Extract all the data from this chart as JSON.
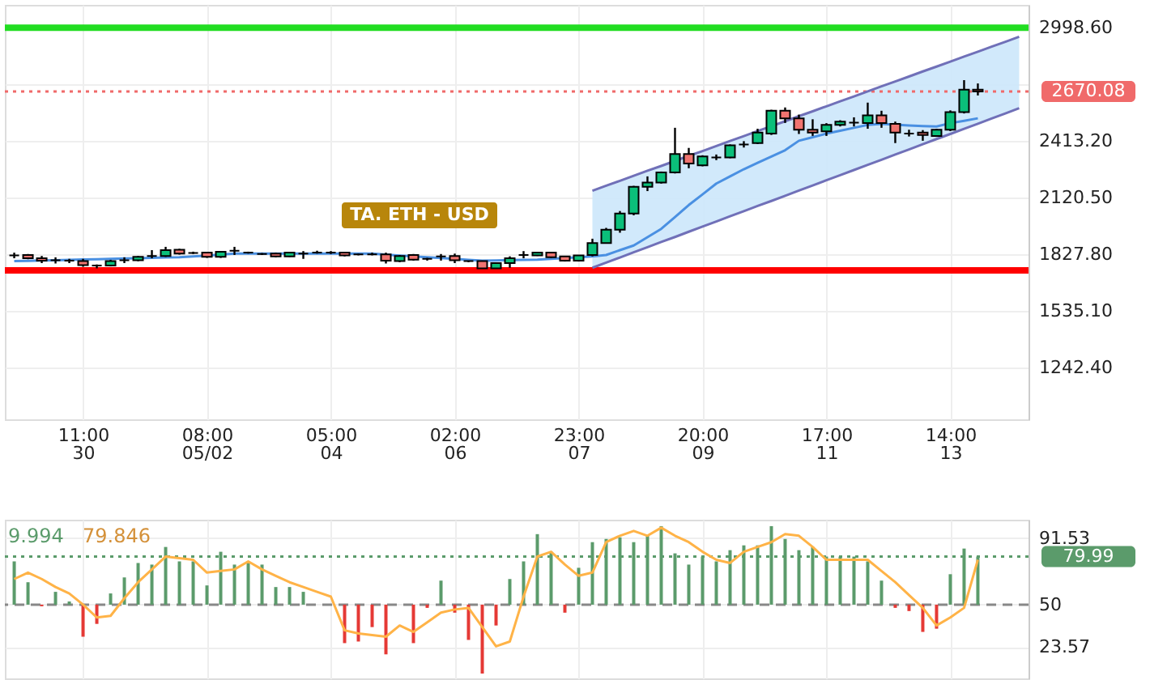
{
  "chart_data": [
    {
      "type": "candlestick",
      "categories": [
        null,
        null,
        null,
        null,
        null,
        "11:00\n30",
        null,
        null,
        null,
        null,
        null,
        null,
        null,
        null,
        "08:00\n05/02",
        null,
        null,
        null,
        null,
        null,
        null,
        null,
        null,
        "05:00\n04",
        null,
        null,
        null,
        null,
        null,
        null,
        null,
        null,
        "02:00\n06",
        null,
        null,
        null,
        null,
        null,
        null,
        null,
        null,
        "23:00\n07",
        null,
        null,
        null,
        null,
        null,
        null,
        null,
        null,
        "20:00\n09",
        null,
        null,
        null,
        null,
        null,
        null,
        null,
        null,
        "17:00\n11",
        null,
        null,
        null,
        null,
        null,
        null,
        null,
        null,
        "14:00\n13",
        null,
        null,
        null,
        null,
        null
      ],
      "ohlc": [
        [
          1823,
          1837,
          1808,
          1823
        ],
        [
          1825,
          1830,
          1803,
          1808
        ],
        [
          1808,
          1820,
          1783,
          1796
        ],
        [
          1798,
          1813,
          1781,
          1798
        ],
        [
          1796,
          1805,
          1783,
          1796
        ],
        [
          1793,
          1805,
          1764,
          1773
        ],
        [
          1771,
          1776,
          1756,
          1771
        ],
        [
          1771,
          1800,
          1766,
          1793
        ],
        [
          1798,
          1813,
          1783,
          1798
        ],
        [
          1798,
          1820,
          1793,
          1815
        ],
        [
          1820,
          1850,
          1808,
          1820
        ],
        [
          1820,
          1867,
          1815,
          1850
        ],
        [
          1852,
          1857,
          1827,
          1832
        ],
        [
          1835,
          1842,
          1830,
          1835
        ],
        [
          1837,
          1840,
          1810,
          1815
        ],
        [
          1815,
          1845,
          1810,
          1842
        ],
        [
          1847,
          1867,
          1825,
          1847
        ],
        [
          1837,
          1842,
          1832,
          1837
        ],
        [
          1830,
          1835,
          1825,
          1830
        ],
        [
          1832,
          1837,
          1813,
          1818
        ],
        [
          1818,
          1840,
          1815,
          1837
        ],
        [
          1832,
          1845,
          1805,
          1832
        ],
        [
          1837,
          1847,
          1832,
          1837
        ],
        [
          1837,
          1845,
          1830,
          1837
        ],
        [
          1837,
          1840,
          1818,
          1823
        ],
        [
          1828,
          1832,
          1823,
          1828
        ],
        [
          1828,
          1837,
          1823,
          1828
        ],
        [
          1828,
          1837,
          1781,
          1796
        ],
        [
          1793,
          1825,
          1788,
          1820
        ],
        [
          1825,
          1830,
          1796,
          1801
        ],
        [
          1805,
          1810,
          1796,
          1805
        ],
        [
          1818,
          1830,
          1796,
          1818
        ],
        [
          1820,
          1832,
          1783,
          1798
        ],
        [
          1793,
          1796,
          1788,
          1793
        ],
        [
          1793,
          1796,
          1754,
          1756
        ],
        [
          1756,
          1786,
          1754,
          1783
        ],
        [
          1783,
          1818,
          1759,
          1808
        ],
        [
          1825,
          1845,
          1808,
          1825
        ],
        [
          1823,
          1840,
          1820,
          1837
        ],
        [
          1837,
          1840,
          1810,
          1813
        ],
        [
          1818,
          1820,
          1791,
          1796
        ],
        [
          1796,
          1825,
          1791,
          1823
        ],
        [
          1825,
          1909,
          1818,
          1887
        ],
        [
          1887,
          1965,
          1884,
          1956
        ],
        [
          1956,
          2052,
          1940,
          2039
        ],
        [
          2039,
          2182,
          2030,
          2177
        ],
        [
          2177,
          2231,
          2155,
          2199
        ],
        [
          2199,
          2256,
          2194,
          2251
        ],
        [
          2251,
          2482,
          2246,
          2347
        ],
        [
          2347,
          2378,
          2273,
          2297
        ],
        [
          2288,
          2340,
          2283,
          2334
        ],
        [
          2329,
          2344,
          2315,
          2329
        ],
        [
          2329,
          2396,
          2325,
          2391
        ],
        [
          2396,
          2413,
          2380,
          2396
        ],
        [
          2403,
          2477,
          2398,
          2457
        ],
        [
          2452,
          2575,
          2445,
          2570
        ],
        [
          2570,
          2587,
          2507,
          2531
        ],
        [
          2531,
          2550,
          2450,
          2472
        ],
        [
          2472,
          2526,
          2440,
          2457
        ],
        [
          2464,
          2506,
          2440,
          2497
        ],
        [
          2497,
          2521,
          2489,
          2514
        ],
        [
          2509,
          2536,
          2489,
          2509
        ],
        [
          2506,
          2612,
          2477,
          2546
        ],
        [
          2546,
          2570,
          2482,
          2506
        ],
        [
          2502,
          2514,
          2403,
          2457
        ],
        [
          2452,
          2472,
          2437,
          2452
        ],
        [
          2457,
          2470,
          2415,
          2445
        ],
        [
          2440,
          2477,
          2435,
          2472
        ],
        [
          2472,
          2572,
          2465,
          2563
        ],
        [
          2563,
          2728,
          2556,
          2679
        ],
        [
          2679,
          2711,
          2649,
          2670
        ],
        null,
        null,
        null
      ],
      "colors": [
        "#000000",
        "#f07470",
        "#f07470",
        "#000000",
        "#000000",
        "#f07470",
        "#000000",
        "#0bbf7a",
        "#000000",
        "#0bbf7a",
        "#000000",
        "#0bbf7a",
        "#f07470",
        "#000000",
        "#f07470",
        "#0bbf7a",
        "#000000",
        "#000000",
        "#000000",
        "#f07470",
        "#0bbf7a",
        "#000000",
        "#000000",
        "#000000",
        "#f07470",
        "#000000",
        "#000000",
        "#f07470",
        "#0bbf7a",
        "#f07470",
        "#000000",
        "#000000",
        "#f07470",
        "#000000",
        "#f07470",
        "#0bbf7a",
        "#0bbf7a",
        "#000000",
        "#0bbf7a",
        "#f07470",
        "#f07470",
        "#0bbf7a",
        "#0bbf7a",
        "#0bbf7a",
        "#0bbf7a",
        "#0bbf7a",
        "#0bbf7a",
        "#0bbf7a",
        "#0bbf7a",
        "#f07470",
        "#0bbf7a",
        "#000000",
        "#0bbf7a",
        "#000000",
        "#0bbf7a",
        "#0bbf7a",
        "#f07470",
        "#f07470",
        "#f07470",
        "#0bbf7a",
        "#0bbf7a",
        "#000000",
        "#0bbf7a",
        "#f07470",
        "#f07470",
        "#000000",
        "#f07470",
        "#0bbf7a",
        "#0bbf7a",
        "#0bbf7a",
        "#f07470",
        "#000000",
        "#000000",
        "#000000"
      ],
      "series": [
        {
          "type": "line",
          "color": "#4a90e2",
          "values": [
            1793,
            1795,
            1797,
            1798,
            1800,
            1802,
            1803,
            1805,
            1807,
            1808,
            1810,
            1812,
            1813,
            1818,
            1822,
            1827,
            1832,
            1832,
            1832,
            1832,
            1832,
            1832,
            1832,
            1832,
            1832,
            1832,
            1832,
            1827,
            1822,
            1818,
            1813,
            1809,
            1805,
            1800,
            1796,
            1797,
            1799,
            1800,
            1801,
            1805,
            1809,
            1813,
            1818,
            1825,
            1850,
            1874,
            1917,
            1960,
            2021,
            2083,
            2138,
            2194,
            2231,
            2268,
            2301,
            2333,
            2366,
            2415,
            2433,
            2452,
            2467,
            2482,
            2497,
            2502,
            2498,
            2494,
            2491,
            2489,
            2506,
            2518,
            2531,
            null,
            null,
            null
          ]
        },
        {
          "type": "line",
          "color": "#7070b8",
          "values": [
            null,
            null,
            null,
            null,
            null,
            null,
            null,
            null,
            null,
            null,
            null,
            null,
            null,
            null,
            null,
            null,
            null,
            null,
            null,
            null,
            null,
            null,
            null,
            null,
            null,
            null,
            null,
            null,
            null,
            null,
            null,
            null,
            null,
            null,
            null,
            null,
            null,
            null,
            null,
            null,
            null,
            null,
            2157,
            2183,
            2208,
            2234,
            2260,
            2285,
            2311,
            2337,
            2362,
            2388,
            2414,
            2439,
            2465,
            2490,
            2516,
            2542,
            2567,
            2593,
            2619,
            2644,
            2670,
            2696,
            2721,
            2747,
            2773,
            2798,
            2824,
            2850,
            2875,
            2901,
            2926,
            2952
          ],
          "lower": [
            null,
            null,
            null,
            null,
            null,
            null,
            null,
            null,
            null,
            null,
            null,
            null,
            null,
            null,
            null,
            null,
            null,
            null,
            null,
            null,
            null,
            null,
            null,
            null,
            null,
            null,
            null,
            null,
            null,
            null,
            null,
            null,
            null,
            null,
            null,
            null,
            null,
            null,
            null,
            null,
            null,
            null,
            1759,
            1786,
            1812,
            1839,
            1865,
            1892,
            1918,
            1945,
            1972,
            1998,
            2025,
            2051,
            2078,
            2104,
            2131,
            2158,
            2184,
            2211,
            2237,
            2264,
            2291,
            2317,
            2344,
            2370,
            2397,
            2424,
            2450,
            2477,
            2503,
            2530,
            2556,
            2583
          ],
          "upper": [
            null,
            null,
            null,
            null,
            null,
            null,
            null,
            null,
            null,
            null,
            null,
            null,
            null,
            null,
            null,
            null,
            null,
            null,
            null,
            null,
            null,
            null,
            null,
            null,
            null,
            null,
            null,
            null,
            null,
            null,
            null,
            null,
            null,
            null,
            null,
            null,
            null,
            null,
            null,
            null,
            null,
            null,
            2157,
            2183,
            2208,
            2234,
            2260,
            2285,
            2311,
            2337,
            2362,
            2388,
            2414,
            2439,
            2465,
            2490,
            2516,
            2542,
            2567,
            2593,
            2619,
            2644,
            2670,
            2696,
            2721,
            2747,
            2773,
            2798,
            2824,
            2850,
            2875,
            2901,
            2926,
            2952
          ]
        },
        {
          "type": "line",
          "color": "#7070b8",
          "values": [
            null,
            null,
            null,
            null,
            null,
            null,
            null,
            null,
            null,
            null,
            null,
            null,
            null,
            null,
            null,
            null,
            null,
            null,
            null,
            null,
            null,
            null,
            null,
            null,
            null,
            null,
            null,
            null,
            null,
            null,
            null,
            null,
            null,
            null,
            null,
            null,
            null,
            null,
            null,
            null,
            null,
            null,
            1759,
            1786,
            1812,
            1839,
            1865,
            1892,
            1918,
            1945,
            1972,
            1998,
            2025,
            2051,
            2078,
            2104,
            2131,
            2158,
            2184,
            2211,
            2237,
            2264,
            2291,
            2317,
            2344,
            2370,
            2397,
            2424,
            2450,
            2477,
            2503,
            2530,
            2556,
            2583
          ]
        }
      ],
      "ylim": [
        976,
        3117
      ],
      "yticks": [
        {
          "value": 1242.4,
          "label": "1242.40"
        },
        {
          "value": 1535.1,
          "label": "1535.10"
        },
        {
          "value": 1827.8,
          "label": "1827.80"
        },
        {
          "value": 2120.5,
          "label": "2120.50"
        },
        {
          "value": 2413.2,
          "label": "2413.20"
        },
        {
          "value": 2705.9,
          "label": null
        },
        {
          "value": 2998.6,
          "label": "2998.60"
        }
      ],
      "ref_lines": [
        {
          "axis": "y",
          "value": 2998.6,
          "color": "#22dd22"
        },
        {
          "axis": "y",
          "value": 1745,
          "color": "#ff0000"
        },
        {
          "axis": "y",
          "value": 2670.08,
          "label": "2670.08",
          "color": "#f06a6a",
          "line_style": "dotted"
        }
      ],
      "annotations": [
        "TA. ETH - USD"
      ],
      "grid": true
    },
    {
      "type": "bar",
      "categories": [
        null,
        null,
        null,
        null,
        null,
        null,
        null,
        null,
        null,
        null,
        null,
        null,
        null,
        null,
        null,
        null,
        null,
        null,
        null,
        null,
        null,
        null,
        null,
        null,
        null,
        null,
        null,
        null,
        null,
        null,
        null,
        null,
        null,
        null,
        null,
        null,
        null,
        null,
        null,
        null,
        null,
        null,
        null,
        null,
        null,
        null,
        null,
        null,
        null,
        null,
        null,
        null,
        null,
        null,
        null,
        null,
        null,
        null,
        null,
        null,
        null,
        null,
        null,
        null,
        null,
        null,
        null,
        null,
        null,
        null,
        null,
        null,
        null,
        null
      ],
      "base": [
        50,
        50,
        50,
        50,
        50,
        50,
        50,
        50,
        50,
        50,
        50,
        50,
        50,
        50,
        50,
        50,
        50,
        50,
        50,
        50,
        50,
        50,
        null,
        null,
        50,
        50,
        50,
        50,
        null,
        50,
        50,
        50,
        50,
        50,
        50,
        50,
        50,
        50,
        50,
        50,
        50,
        50,
        50,
        50,
        50,
        50,
        50,
        50,
        50,
        50,
        50,
        50,
        50,
        50,
        50,
        50,
        50,
        50,
        50,
        50,
        50,
        50,
        50,
        50,
        50,
        50,
        50,
        50,
        50,
        50,
        50,
        null,
        null,
        null
      ],
      "values": [
        27,
        14,
        -1,
        8,
        2,
        -20,
        -12,
        7,
        17,
        26,
        25,
        36,
        27,
        27,
        12,
        33,
        25,
        26,
        25,
        11,
        11,
        8,
        null,
        null,
        -24,
        -23,
        -14,
        -31,
        null,
        -24,
        -2,
        15,
        -5,
        -22,
        -43,
        -13,
        16,
        27,
        44,
        33,
        -5,
        23,
        39,
        41,
        42,
        39,
        43,
        49,
        32,
        25,
        30,
        27,
        34,
        37,
        37,
        49,
        41,
        34,
        36,
        30,
        30,
        30,
        27,
        15,
        -2,
        -4,
        -17,
        -15,
        19,
        35,
        30,
        null,
        null,
        null
      ],
      "colors": [
        "#5b9b6b",
        "#5b9b6b",
        "#e53935",
        "#5b9b6b",
        "#5b9b6b",
        "#e53935",
        "#e53935",
        "#5b9b6b",
        "#5b9b6b",
        "#5b9b6b",
        "#5b9b6b",
        "#5b9b6b",
        "#5b9b6b",
        "#5b9b6b",
        "#5b9b6b",
        "#5b9b6b",
        "#5b9b6b",
        "#5b9b6b",
        "#5b9b6b",
        "#5b9b6b",
        "#5b9b6b",
        "#5b9b6b",
        "#5b9b6b",
        "#5b9b6b",
        "#e53935",
        "#e53935",
        "#e53935",
        "#e53935",
        "#5b9b6b",
        "#e53935",
        "#e53935",
        "#5b9b6b",
        "#e53935",
        "#e53935",
        "#e53935",
        "#e53935",
        "#5b9b6b",
        "#5b9b6b",
        "#5b9b6b",
        "#5b9b6b",
        "#e53935",
        "#5b9b6b",
        "#5b9b6b",
        "#5b9b6b",
        "#5b9b6b",
        "#5b9b6b",
        "#5b9b6b",
        "#5b9b6b",
        "#5b9b6b",
        "#5b9b6b",
        "#5b9b6b",
        "#5b9b6b",
        "#5b9b6b",
        "#5b9b6b",
        "#5b9b6b",
        "#5b9b6b",
        "#5b9b6b",
        "#5b9b6b",
        "#5b9b6b",
        "#5b9b6b",
        "#5b9b6b",
        "#5b9b6b",
        "#5b9b6b",
        "#5b9b6b",
        "#e53935",
        "#e53935",
        "#e53935",
        "#e53935",
        "#5b9b6b",
        "#5b9b6b",
        "#5b9b6b",
        "#5b9b6b",
        "#5b9b6b",
        "#5b9b6b"
      ],
      "series": [
        {
          "type": "line",
          "color": "#ffb347",
          "values": [
            66,
            70,
            66,
            61,
            57,
            50,
            42,
            43,
            54,
            64,
            72,
            80,
            79,
            78,
            70,
            71,
            72,
            77,
            72,
            68,
            64,
            61,
            58,
            55,
            34,
            32,
            31,
            30,
            37,
            33,
            39,
            45,
            47,
            48,
            36,
            24,
            27,
            55,
            80,
            83,
            75,
            68,
            70,
            89,
            93,
            96,
            93,
            98,
            93,
            89,
            83,
            78,
            76,
            83,
            86,
            89,
            94,
            93,
            86,
            78,
            78,
            78,
            78,
            71,
            64,
            56,
            48,
            37,
            42,
            48,
            78,
            null,
            null,
            null
          ]
        }
      ],
      "ylim": [
        4,
        103
      ],
      "yticks": [
        23.57,
        50,
        91.53
      ],
      "ref_lines": [
        {
          "axis": "y",
          "value": 50,
          "color": "#888888",
          "line_style": "dashed"
        },
        {
          "axis": "y",
          "value": 79.99,
          "label": "79.99",
          "color": "#5b9b6b",
          "line_style": "dotted"
        }
      ],
      "annotations": [
        "9.994",
        "79.846"
      ],
      "tick_labels": "y",
      "grid": true
    }
  ]
}
